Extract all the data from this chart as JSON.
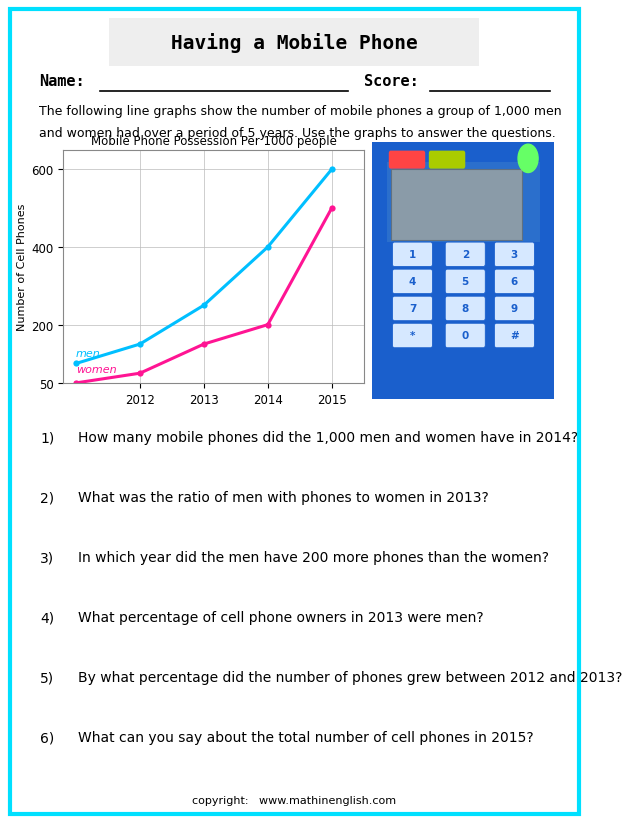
{
  "title": "Having a Mobile Phone",
  "description1": "The following line graphs show the number of mobile phones a group of 1,000 men",
  "description2": "and women had over a period of 5 years. Use the graphs to answer the questions.",
  "graph_title": "Mobile Phone Possession Per 1000 people",
  "ylabel": "Number of Cell Phones",
  "years": [
    2011,
    2012,
    2013,
    2014,
    2015
  ],
  "men_values": [
    100,
    150,
    250,
    400,
    600
  ],
  "women_values": [
    50,
    75,
    150,
    200,
    500
  ],
  "men_color": "#00BFFF",
  "women_color": "#FF1493",
  "ylim_min": 50,
  "ylim_max": 650,
  "yticks": [
    50,
    200,
    400,
    600
  ],
  "xtick_labels": [
    "2012",
    "2013",
    "2014",
    "2015"
  ],
  "xtick_vals": [
    2012,
    2013,
    2014,
    2015
  ],
  "border_color": "#00E0FF",
  "background_color": "#FFFFFF",
  "title_box_color": "#EEEEEE",
  "phone_body_color": "#1A5FCC",
  "phone_screen_color": "#8A9BA8",
  "phone_green_dot": "#66FF66",
  "phone_key_face": "#D6E8FF",
  "phone_key_edge": "#1A5FCC",
  "questions": [
    "How many mobile phones did the 1,000 men and women have in 2014?",
    "What was the ratio of men with phones to women in 2013?",
    "In which year did the men have 200 more phones than the women?",
    "What percentage of cell phone owners in 2013 were men?",
    "By what percentage did the number of phones grew between 2012 and 2013?",
    "What can you say about the total number of cell phones in 2015?"
  ],
  "copyright": "copyright:   www.mathinenglish.com"
}
